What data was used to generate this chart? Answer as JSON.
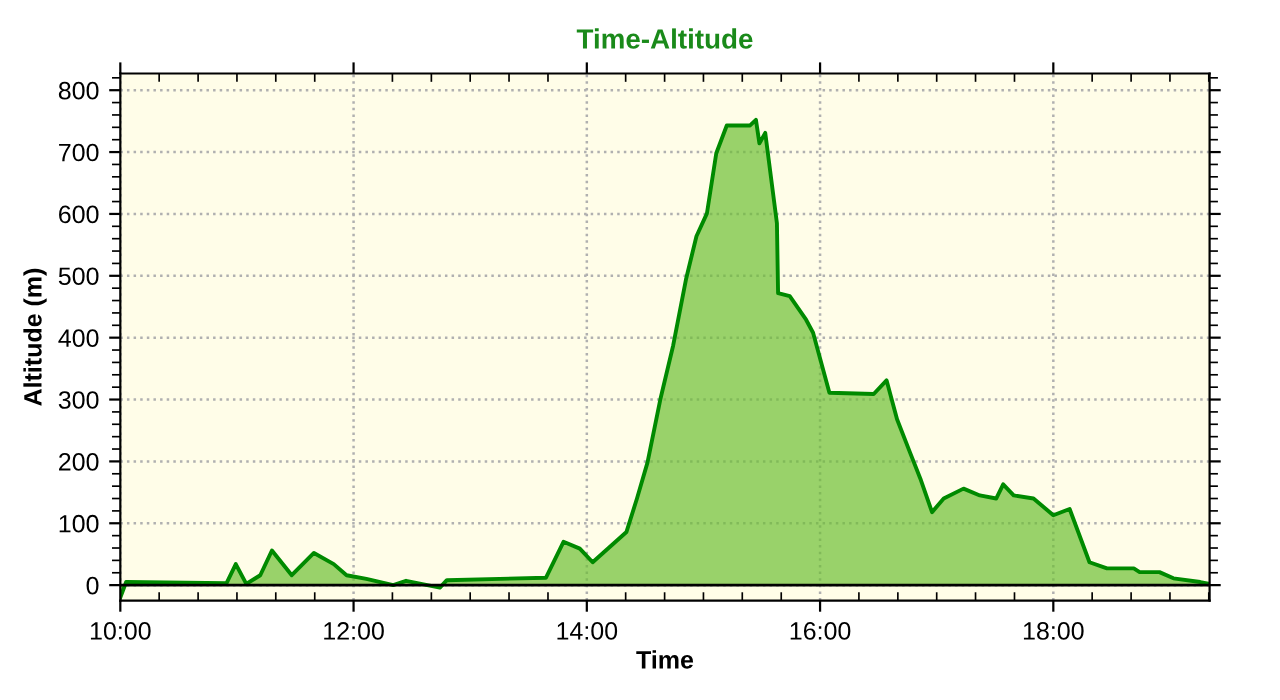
{
  "chart_data": {
    "type": "area",
    "title": "Time-Altitude",
    "xlabel": "Time",
    "ylabel": "Altitude (m)",
    "xlim": [
      10,
      19.34
    ],
    "ylim": [
      -25,
      827
    ],
    "xticks": [
      {
        "value": 10,
        "label": "10:00"
      },
      {
        "value": 10.333,
        "label": null
      },
      {
        "value": 10.667,
        "label": null
      },
      {
        "value": 11,
        "label": null
      },
      {
        "value": 11.333,
        "label": null
      },
      {
        "value": 11.667,
        "label": null
      },
      {
        "value": 12,
        "label": "12:00"
      },
      {
        "value": 12.333,
        "label": null
      },
      {
        "value": 12.667,
        "label": null
      },
      {
        "value": 13,
        "label": null
      },
      {
        "value": 13.333,
        "label": null
      },
      {
        "value": 13.667,
        "label": null
      },
      {
        "value": 14,
        "label": "14:00"
      },
      {
        "value": 14.333,
        "label": null
      },
      {
        "value": 14.667,
        "label": null
      },
      {
        "value": 15,
        "label": null
      },
      {
        "value": 15.333,
        "label": null
      },
      {
        "value": 15.667,
        "label": null
      },
      {
        "value": 16,
        "label": "16:00"
      },
      {
        "value": 16.333,
        "label": null
      },
      {
        "value": 16.667,
        "label": null
      },
      {
        "value": 17,
        "label": null
      },
      {
        "value": 17.333,
        "label": null
      },
      {
        "value": 17.667,
        "label": null
      },
      {
        "value": 18,
        "label": "18:00"
      },
      {
        "value": 18.333,
        "label": null
      },
      {
        "value": 18.667,
        "label": null
      },
      {
        "value": 19,
        "label": null
      },
      {
        "value": 19.333,
        "label": null
      }
    ],
    "yticks": [
      0,
      {
        "value": 20,
        "label": null
      },
      {
        "value": 40,
        "label": null
      },
      {
        "value": 60,
        "label": null
      },
      {
        "value": 80,
        "label": null
      },
      100,
      {
        "value": 120,
        "label": null
      },
      {
        "value": 140,
        "label": null
      },
      {
        "value": 160,
        "label": null
      },
      {
        "value": 180,
        "label": null
      },
      200,
      {
        "value": 220,
        "label": null
      },
      {
        "value": 240,
        "label": null
      },
      {
        "value": 260,
        "label": null
      },
      {
        "value": 280,
        "label": null
      },
      300,
      {
        "value": 320,
        "label": null
      },
      {
        "value": 340,
        "label": null
      },
      {
        "value": 360,
        "label": null
      },
      {
        "value": 380,
        "label": null
      },
      400,
      {
        "value": 420,
        "label": null
      },
      {
        "value": 440,
        "label": null
      },
      {
        "value": 460,
        "label": null
      },
      {
        "value": 480,
        "label": null
      },
      500,
      {
        "value": 520,
        "label": null
      },
      {
        "value": 540,
        "label": null
      },
      {
        "value": 560,
        "label": null
      },
      {
        "value": 580,
        "label": null
      },
      600,
      {
        "value": 620,
        "label": null
      },
      {
        "value": 640,
        "label": null
      },
      {
        "value": 660,
        "label": null
      },
      {
        "value": 680,
        "label": null
      },
      700,
      {
        "value": 720,
        "label": null
      },
      {
        "value": 740,
        "label": null
      },
      {
        "value": 760,
        "label": null
      },
      {
        "value": 780,
        "label": null
      },
      800,
      {
        "value": 820,
        "label": null
      }
    ],
    "grid": true,
    "line_style": "solid",
    "marker": "none",
    "series": [
      {
        "color": "#008a00",
        "x": [
          10.0,
          10.05,
          10.91,
          10.99,
          11.08,
          11.2,
          11.3,
          11.47,
          11.66,
          11.83,
          11.94,
          12.11,
          12.34,
          12.45,
          12.74,
          12.8,
          13.65,
          13.8,
          13.94,
          14.05,
          14.34,
          14.43,
          14.52,
          14.63,
          14.74,
          14.85,
          14.94,
          15.03,
          15.11,
          15.2,
          15.4,
          15.45,
          15.48,
          15.53,
          15.63,
          15.64,
          15.74,
          15.88,
          15.94,
          16.08,
          16.46,
          16.57,
          16.66,
          16.77,
          16.86,
          16.96,
          17.06,
          17.23,
          17.37,
          17.51,
          17.57,
          17.66,
          17.83,
          18.0,
          18.14,
          18.31,
          18.46,
          18.69,
          18.74,
          18.91,
          19.03,
          19.26,
          19.34
        ],
        "values": [
          -20,
          5,
          3,
          34,
          2,
          16,
          56,
          16,
          52,
          34,
          16,
          10,
          0,
          7,
          -4,
          8,
          12,
          70,
          59,
          37,
          86,
          140,
          198,
          300,
          387,
          494,
          564,
          601,
          698,
          743,
          743,
          752,
          714,
          731,
          585,
          472,
          467,
          429,
          408,
          311,
          309,
          331,
          268,
          215,
          172,
          118,
          140,
          156,
          145,
          140,
          163,
          145,
          140,
          113,
          123,
          37,
          27,
          27,
          21,
          21,
          11,
          5,
          2
        ]
      }
    ]
  }
}
